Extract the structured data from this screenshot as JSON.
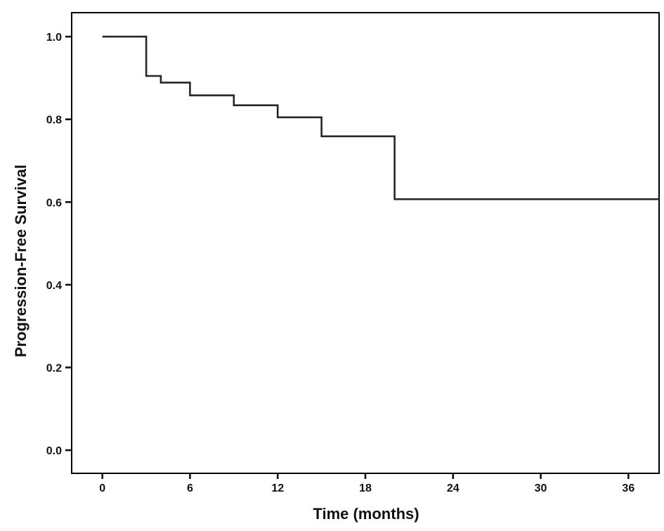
{
  "chart_data": {
    "type": "line",
    "subtype": "kaplan-meier-step",
    "title": "",
    "xlabel": "Time (months)",
    "ylabel": "Progression-Free Survival",
    "x_ticks": [
      "0",
      "6",
      "12",
      "18",
      "24",
      "30",
      "36"
    ],
    "y_ticks": [
      "0.0",
      "0.2",
      "0.4",
      "0.6",
      "0.8",
      "1.0"
    ],
    "xlim": [
      -2.1,
      38.1
    ],
    "ylim": [
      -0.056,
      1.058
    ],
    "grid": false,
    "legend": null,
    "colors": {
      "curve": "#262626",
      "frame": "#000000",
      "tick": "#111111"
    },
    "series": [
      {
        "name": "Progression-Free Survival",
        "step_times": [
          0,
          3,
          4,
          6,
          9,
          12,
          15,
          20
        ],
        "survival_values": [
          1.0,
          0.905,
          0.889,
          0.858,
          0.834,
          0.805,
          0.759,
          0.607
        ],
        "curve_end_time": 38.1
      }
    ]
  }
}
